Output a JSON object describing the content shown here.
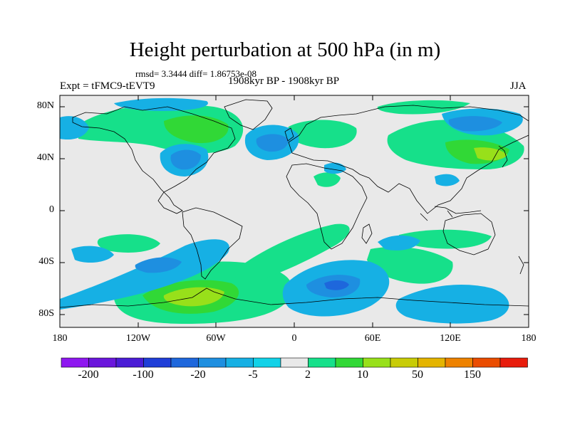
{
  "title": "Height perturbation at 500 hPa (in m)",
  "stats_line": "rmsd= 3.3444 diff= 1.86753e-08",
  "period": "1908kyr BP - 1908kyr BP",
  "experiment": "Expt = tFMC9-tEVT9",
  "season": "JJA",
  "lat_ticks": [
    "80N",
    "40N",
    "0",
    "40S",
    "80S"
  ],
  "lon_ticks": [
    "180",
    "120W",
    "60W",
    "0",
    "60E",
    "120E",
    "180"
  ],
  "colorbar": {
    "colors": [
      "#8e17f0",
      "#6a16dc",
      "#4a1cd6",
      "#1f3ed8",
      "#1e67dc",
      "#1e8fe0",
      "#16b0e4",
      "#12d2e8",
      "#e9e9e9",
      "#16e08a",
      "#31d836",
      "#98e01a",
      "#c8cc06",
      "#e4b400",
      "#ee8200",
      "#ea4c00",
      "#e81c0c"
    ],
    "labels": [
      "-200",
      "-100",
      "-20",
      "-5",
      "2",
      "10",
      "50",
      "150"
    ]
  },
  "palette": {
    "neg_weak": "#16b0e4",
    "neg_mid": "#1e8fe0",
    "neg_strong": "#1e67dc",
    "pos_weak": "#16e08a",
    "pos_mid": "#31d836",
    "pos_strong": "#98e01a",
    "pos_peak": "#c8cc06",
    "background": "#e9e9e9"
  }
}
